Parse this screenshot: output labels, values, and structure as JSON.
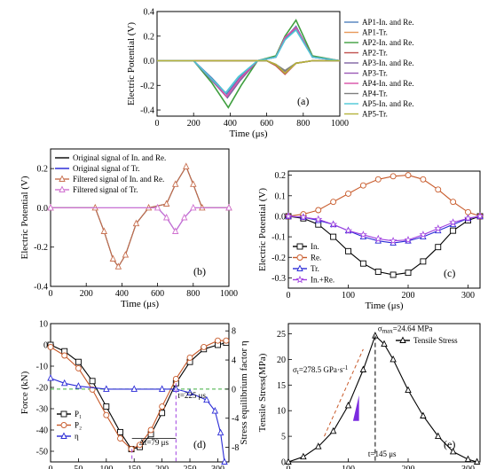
{
  "chart_data": [
    {
      "id": "a",
      "type": "line",
      "panel_label": "(a)",
      "xlabel": "Time (μs)",
      "ylabel": "Electric Potential (V)",
      "xlim": [
        0,
        1000
      ],
      "ylim": [
        -0.45,
        0.4
      ],
      "xticks": [
        "0",
        "200",
        "400",
        "600",
        "800",
        "1000"
      ],
      "yticks": [
        "-0.4",
        "-0.2",
        "0.0",
        "0.2",
        "0.4"
      ],
      "legend_position": "right",
      "series": [
        {
          "name": "AP1-In. and Re.",
          "color": "#4f81bd",
          "x": [
            0,
            200,
            300,
            380,
            450,
            550,
            650,
            700,
            760,
            850,
            1000
          ],
          "values": [
            0,
            0,
            -0.14,
            -0.27,
            -0.14,
            0,
            0.03,
            0.18,
            0.28,
            0.03,
            0
          ]
        },
        {
          "name": "AP1-Tr.",
          "color": "#e89a5a",
          "x": [
            0,
            600,
            650,
            700,
            760,
            850,
            1000
          ],
          "values": [
            0,
            0,
            -0.03,
            -0.1,
            -0.02,
            0,
            0
          ]
        },
        {
          "name": "AP2-In. and Re.",
          "color": "#3f9f3f",
          "x": [
            0,
            200,
            300,
            390,
            460,
            550,
            650,
            700,
            760,
            850,
            1000
          ],
          "values": [
            0,
            0,
            -0.18,
            -0.38,
            -0.2,
            0,
            0.04,
            0.2,
            0.33,
            0.04,
            0
          ]
        },
        {
          "name": "AP2-Tr.",
          "color": "#c0504d",
          "x": [
            0,
            600,
            650,
            700,
            760,
            850,
            1000
          ],
          "values": [
            0,
            0,
            -0.04,
            -0.11,
            -0.02,
            0,
            0
          ]
        },
        {
          "name": "AP3-In. and Re.",
          "color": "#8064a2",
          "x": [
            0,
            200,
            300,
            385,
            455,
            550,
            650,
            700,
            760,
            850,
            1000
          ],
          "values": [
            0,
            0,
            -0.16,
            -0.3,
            -0.16,
            0,
            0.03,
            0.17,
            0.26,
            0.03,
            0
          ]
        },
        {
          "name": "AP3-Tr.",
          "color": "#9b59b6",
          "x": [
            0,
            600,
            650,
            700,
            760,
            850,
            1000
          ],
          "values": [
            0,
            0,
            -0.03,
            -0.09,
            -0.02,
            0,
            0
          ]
        },
        {
          "name": "AP4-In. and Re.",
          "color": "#d94fa8",
          "x": [
            0,
            200,
            300,
            380,
            450,
            550,
            650,
            700,
            760,
            850,
            1000
          ],
          "values": [
            0,
            0,
            -0.15,
            -0.29,
            -0.15,
            0,
            0.03,
            0.19,
            0.27,
            0.03,
            0
          ]
        },
        {
          "name": "AP4-Tr.",
          "color": "#7f7f7f",
          "x": [
            0,
            600,
            650,
            700,
            760,
            850,
            1000
          ],
          "values": [
            0,
            0,
            -0.03,
            -0.08,
            -0.02,
            0,
            0
          ]
        },
        {
          "name": "AP5-In. and Re.",
          "color": "#4bc7d6",
          "x": [
            0,
            200,
            300,
            375,
            445,
            550,
            650,
            700,
            760,
            850,
            1000
          ],
          "values": [
            0,
            0,
            -0.15,
            -0.26,
            -0.13,
            0,
            0.03,
            0.17,
            0.25,
            0.03,
            0
          ]
        },
        {
          "name": "AP5-Tr.",
          "color": "#b5b33a",
          "x": [
            0,
            600,
            650,
            700,
            760,
            850,
            1000
          ],
          "values": [
            0,
            0,
            -0.03,
            -0.1,
            -0.02,
            0,
            0
          ]
        }
      ]
    },
    {
      "id": "b",
      "type": "line",
      "panel_label": "(b)",
      "xlabel": "Time (μs)",
      "ylabel": "Electric Potential (V)",
      "xlim": [
        0,
        1000
      ],
      "ylim": [
        -0.4,
        0.3
      ],
      "xticks": [
        "0",
        "200",
        "400",
        "600",
        "800",
        "1000"
      ],
      "yticks": [
        "-0.4",
        "-0.2",
        "0.0",
        "0.2"
      ],
      "legend_position": "top-left",
      "series": [
        {
          "name": "Original signal of In. and Re.",
          "color": "#000000",
          "marker": "none",
          "x": [
            0,
            250,
            300,
            350,
            380,
            420,
            480,
            550,
            650,
            700,
            760,
            800,
            850,
            1000
          ],
          "values": [
            0,
            0,
            -0.12,
            -0.26,
            -0.3,
            -0.24,
            -0.08,
            0,
            0.02,
            0.12,
            0.21,
            0.12,
            0,
            0
          ]
        },
        {
          "name": "Original signal of Tr.",
          "color": "#1f1fd6",
          "marker": "none",
          "x": [
            0,
            600,
            650,
            700,
            750,
            800,
            1000
          ],
          "values": [
            0,
            0,
            -0.05,
            -0.12,
            -0.05,
            0,
            0
          ]
        },
        {
          "name": "Filtered signal of In. and Re.",
          "color": "#c87050",
          "marker": "triangle",
          "x": [
            0,
            250,
            300,
            350,
            380,
            420,
            480,
            550,
            650,
            700,
            760,
            800,
            850,
            1000
          ],
          "values": [
            0,
            0,
            -0.12,
            -0.26,
            -0.3,
            -0.24,
            -0.08,
            0,
            0.02,
            0.12,
            0.21,
            0.12,
            0,
            0
          ]
        },
        {
          "name": "Filtered signal of Tr.",
          "color": "#d070d0",
          "marker": "triangle",
          "x": [
            0,
            600,
            650,
            700,
            750,
            800,
            1000
          ],
          "values": [
            0,
            0,
            -0.05,
            -0.12,
            -0.05,
            0,
            0
          ]
        }
      ]
    },
    {
      "id": "c",
      "type": "line",
      "panel_label": "(c)",
      "xlabel": "Time (μs)",
      "ylabel": "Electric Potential (V)",
      "xlim": [
        0,
        320
      ],
      "ylim": [
        -0.35,
        0.22
      ],
      "xticks": [
        "0",
        "100",
        "200",
        "300"
      ],
      "yticks": [
        "-0.3",
        "-0.2",
        "-0.1",
        "0.0",
        "0.1",
        "0.2"
      ],
      "legend_position": "bottom-left",
      "series": [
        {
          "name": "In.",
          "color": "#000000",
          "marker": "square",
          "x": [
            0,
            25,
            50,
            75,
            100,
            125,
            150,
            175,
            200,
            225,
            250,
            275,
            300,
            320
          ],
          "values": [
            0,
            -0.01,
            -0.04,
            -0.1,
            -0.17,
            -0.23,
            -0.27,
            -0.285,
            -0.275,
            -0.22,
            -0.15,
            -0.07,
            -0.02,
            0
          ]
        },
        {
          "name": "Re.",
          "color": "#c85a2a",
          "marker": "circle",
          "x": [
            0,
            25,
            50,
            75,
            100,
            125,
            150,
            175,
            200,
            225,
            250,
            275,
            300,
            320
          ],
          "values": [
            0,
            0.01,
            0.03,
            0.07,
            0.11,
            0.15,
            0.18,
            0.195,
            0.2,
            0.18,
            0.13,
            0.07,
            0.02,
            0
          ]
        },
        {
          "name": "Tr.",
          "color": "#2a2ad6",
          "marker": "triangle",
          "x": [
            0,
            25,
            50,
            75,
            100,
            125,
            150,
            175,
            200,
            225,
            250,
            275,
            300,
            320
          ],
          "values": [
            0,
            -0.005,
            -0.02,
            -0.04,
            -0.07,
            -0.1,
            -0.12,
            -0.13,
            -0.12,
            -0.1,
            -0.07,
            -0.04,
            -0.01,
            0
          ]
        },
        {
          "name": "In.+Re.",
          "color": "#a040e0",
          "marker": "star",
          "x": [
            0,
            25,
            50,
            75,
            100,
            125,
            150,
            175,
            200,
            225,
            250,
            275,
            300,
            320
          ],
          "values": [
            0,
            -0.005,
            -0.015,
            -0.04,
            -0.07,
            -0.09,
            -0.11,
            -0.12,
            -0.115,
            -0.09,
            -0.06,
            -0.03,
            -0.01,
            0
          ]
        }
      ]
    },
    {
      "id": "d",
      "type": "line",
      "panel_label": "(d)",
      "xlabel": "Time (μs)",
      "ylabel": "Force (kN)",
      "y2label": "Stress equilibrium factor η",
      "xlim": [
        0,
        320
      ],
      "ylim": [
        -55,
        10
      ],
      "y2lim": [
        -10,
        9
      ],
      "xticks": [
        "0",
        "50",
        "100",
        "150",
        "200",
        "250",
        "300"
      ],
      "yticks": [
        "-50",
        "-40",
        "-30",
        "-20",
        "-10",
        "0",
        "10"
      ],
      "y2ticks": [
        "-8",
        "-4",
        "0",
        "4",
        "8"
      ],
      "legend_position": "bottom-left",
      "annotations": [
        "Δt=79 μs",
        "t=225 μs"
      ],
      "annotation_values": {
        "delta_t": 79,
        "t_line1": 146,
        "t_line2": 225
      },
      "series": [
        {
          "name": "P₁",
          "color": "#000000",
          "marker": "square",
          "axis": "left",
          "x": [
            0,
            25,
            50,
            75,
            100,
            125,
            145,
            160,
            180,
            200,
            225,
            250,
            275,
            300,
            315
          ],
          "values": [
            0,
            -3,
            -8,
            -17,
            -29,
            -41,
            -49,
            -48,
            -42,
            -32,
            -18,
            -8,
            -2,
            0,
            1
          ]
        },
        {
          "name": "P₂",
          "color": "#c85a2a",
          "marker": "circle",
          "axis": "left",
          "x": [
            0,
            25,
            50,
            75,
            100,
            125,
            145,
            160,
            180,
            200,
            225,
            250,
            275,
            300,
            315
          ],
          "values": [
            -1,
            -5,
            -11,
            -21,
            -33,
            -44,
            -49,
            -47,
            -40,
            -29,
            -16,
            -6,
            -1,
            2,
            2
          ]
        },
        {
          "name": "η",
          "color": "#2a2ad6",
          "marker": "triangle",
          "axis": "right",
          "x": [
            0,
            25,
            50,
            100,
            150,
            200,
            225,
            250,
            280,
            295,
            305,
            312
          ],
          "values": [
            1.5,
            0.8,
            0.4,
            0,
            0,
            0,
            0,
            -0.5,
            -1.5,
            -3,
            -6,
            -10
          ]
        }
      ]
    },
    {
      "id": "e",
      "type": "line",
      "panel_label": "(e)",
      "xlabel": "Time (μs)",
      "ylabel": "Tensile Stress(MPa)",
      "xlim": [
        0,
        320
      ],
      "ylim": [
        0,
        27
      ],
      "xticks": [
        "0",
        "100",
        "200",
        "300"
      ],
      "yticks": [
        "0",
        "5",
        "10",
        "15",
        "20",
        "25"
      ],
      "legend_position": "top-right",
      "annotations": [
        "σmax=24.64 MPa",
        "σt=278.5 GPa·s⁻¹",
        "t=145 μs"
      ],
      "annotation_parts": {
        "sigma_max": "σ",
        "sigma_max_sub": "max",
        "sigma_max_val": "=24.64 MPa",
        "sigma_t": "σ",
        "sigma_t_sub": "t",
        "sigma_t_val": "=278.5 GPa·s",
        "sigma_t_exp": "-1",
        "t_text": "t=145 μs"
      },
      "series": [
        {
          "name": "Tensile Stress",
          "color": "#000000",
          "marker": "triangle",
          "x": [
            0,
            25,
            50,
            75,
            100,
            125,
            145,
            160,
            175,
            200,
            225,
            250,
            275,
            300,
            315
          ],
          "values": [
            0,
            1,
            3,
            6,
            11,
            18,
            24.64,
            23,
            20,
            14,
            9,
            5,
            2,
            0.5,
            0
          ]
        }
      ]
    }
  ]
}
